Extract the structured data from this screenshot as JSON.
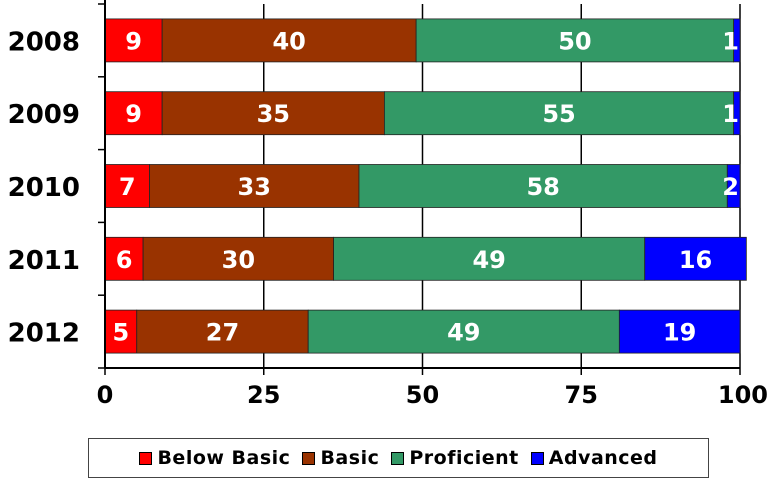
{
  "chart_data": {
    "type": "bar",
    "orientation": "horizontal",
    "stacked": true,
    "categories": [
      "2008",
      "2009",
      "2010",
      "2011",
      "2012"
    ],
    "series": [
      {
        "name": "Below Basic",
        "color": "#ff0000",
        "values": [
          9,
          9,
          7,
          6,
          5
        ]
      },
      {
        "name": "Basic",
        "color": "#993300",
        "values": [
          40,
          35,
          33,
          30,
          27
        ]
      },
      {
        "name": "Proficient",
        "color": "#339966",
        "values": [
          50,
          55,
          58,
          49,
          49
        ]
      },
      {
        "name": "Advanced",
        "color": "#0000ff",
        "values": [
          1,
          1,
          2,
          16,
          19
        ]
      }
    ],
    "xlim": [
      0,
      100
    ],
    "xticks": [
      "0",
      "25",
      "50",
      "75",
      "100"
    ],
    "grid": true,
    "legend_position": "bottom",
    "title": "",
    "xlabel": "",
    "ylabel": ""
  }
}
